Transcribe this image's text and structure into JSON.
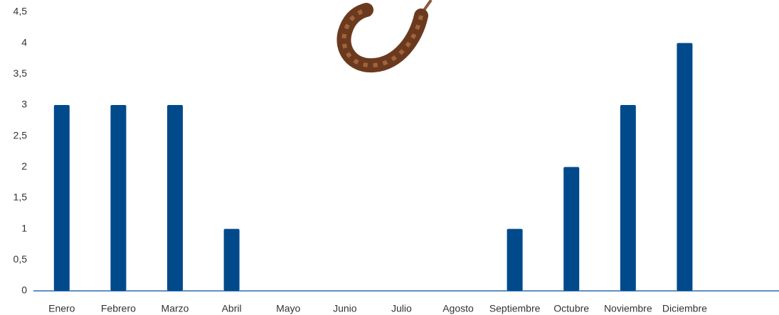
{
  "chart_data": {
    "type": "bar",
    "categories": [
      "Enero",
      "Febrero",
      "Marzo",
      "Abril",
      "Mayo",
      "Junio",
      "Julio",
      "Agosto",
      "Septiembre",
      "Octubre",
      "Noviembre",
      "Diciembre"
    ],
    "values": [
      3,
      3,
      3,
      1,
      0,
      0,
      0,
      0,
      1,
      2,
      3,
      4
    ],
    "color": "#004a8c",
    "ylim": [
      0,
      4.5
    ],
    "yticks": [
      0,
      {
        "value": 0.5,
        "label": "0,5"
      },
      1,
      {
        "value": 1.5,
        "label": "1,5"
      },
      2,
      {
        "value": 2.5,
        "label": "2,5"
      },
      3,
      {
        "value": 3.5,
        "label": "3,5"
      },
      4,
      {
        "value": 4.5,
        "label": "4,5"
      }
    ],
    "grid": false
  }
}
